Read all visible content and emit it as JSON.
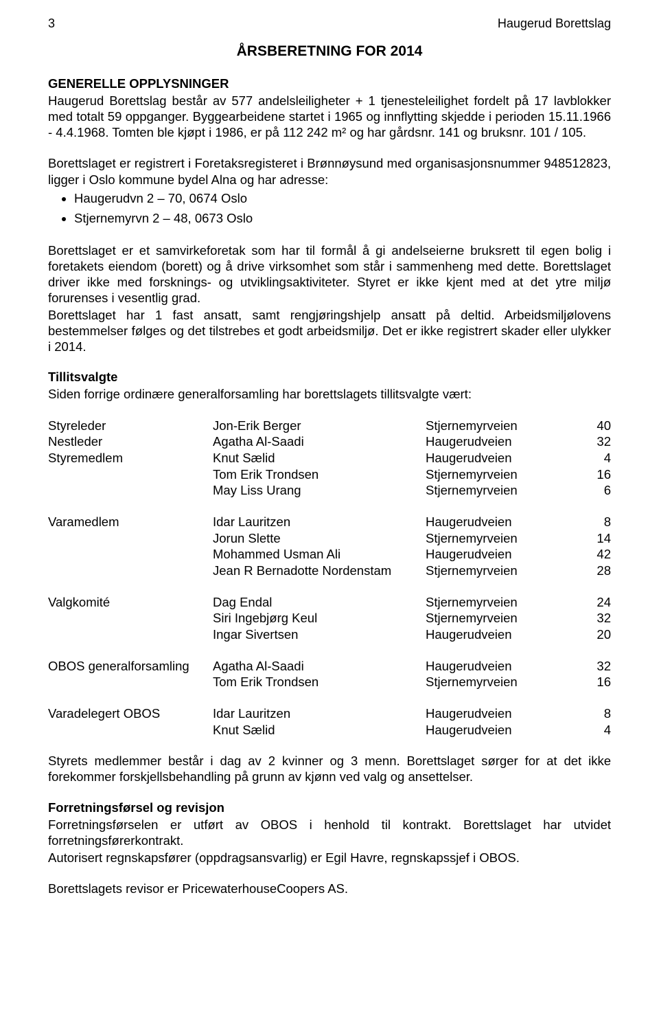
{
  "header": {
    "page_number": "3",
    "organization": "Haugerud Borettslag"
  },
  "title": "ÅRSBERETNING FOR 2014",
  "general_info": {
    "heading": "GENERELLE OPPLYSNINGER",
    "para1": "Haugerud Borettslag består av 577 andelsleiligheter + 1 tjenesteleilighet fordelt på 17 lavblokker med totalt 59 oppganger. Byggearbeidene startet i 1965 og innflytting skjedde i perioden 15.11.1966 - 4.4.1968. Tomten ble kjøpt i 1986, er på 112 242 m² og har gårdsnr. 141 og bruksnr. 101 / 105.",
    "para2": "Borettslaget er registrert i Foretaksregisteret i Brønnøysund med organisasjonsnummer 948512823, ligger i Oslo kommune bydel Alna og har adresse:",
    "addresses": [
      "Haugerudvn 2 – 70, 0674 Oslo",
      "Stjernemyrvn 2 – 48, 0673 Oslo"
    ],
    "para3": "Borettslaget er et samvirkeforetak som har til formål å gi andelseierne bruksrett til egen bolig i foretakets eiendom (borett) og å drive virksomhet som står i sammenheng med dette. Borettslaget driver ikke med forsknings- og utviklingsaktiviteter. Styret er ikke kjent med at det ytre miljø forurenses i vesentlig grad.",
    "para4": "Borettslaget har 1 fast ansatt, samt rengjøringshjelp ansatt på deltid. Arbeidsmiljølovens bestemmelser følges og det tilstrebes et godt arbeidsmiljø. Det er ikke registrert skader eller ulykker i 2014."
  },
  "tillitsvalgte": {
    "heading": "Tillitsvalgte",
    "intro": "Siden forrige ordinære generalforsamling har borettslagets tillitsvalgte vært:",
    "groups": [
      [
        {
          "role": "Styreleder",
          "name": "Jon-Erik Berger",
          "street": "Stjernemyrveien",
          "num": "40"
        },
        {
          "role": "Nestleder",
          "name": "Agatha Al-Saadi",
          "street": "Haugerudveien",
          "num": "32"
        },
        {
          "role": "Styremedlem",
          "name": "Knut Sælid",
          "street": "Haugerudveien",
          "num": "4"
        },
        {
          "role": "",
          "name": "Tom Erik Trondsen",
          "street": "Stjernemyrveien",
          "num": "16"
        },
        {
          "role": "",
          "name": "May Liss Urang",
          "street": "Stjernemyrveien",
          "num": "6"
        }
      ],
      [
        {
          "role": "Varamedlem",
          "name": "Idar Lauritzen",
          "street": "Haugerudveien",
          "num": "8"
        },
        {
          "role": "",
          "name": "Jorun Slette",
          "street": "Stjernemyrveien",
          "num": "14"
        },
        {
          "role": "",
          "name": "Mohammed Usman Ali",
          "street": "Haugerudveien",
          "num": "42"
        },
        {
          "role": "",
          "name": "Jean R Bernadotte Nordenstam",
          "street": "Stjernemyrveien",
          "num": "28"
        }
      ],
      [
        {
          "role": "Valgkomité",
          "name": "Dag Endal",
          "street": "Stjernemyrveien",
          "num": "24"
        },
        {
          "role": "",
          "name": "Siri Ingebjørg Keul",
          "street": "Stjernemyrveien",
          "num": "32"
        },
        {
          "role": "",
          "name": "Ingar Sivertsen",
          "street": "Haugerudveien",
          "num": "20"
        }
      ],
      [
        {
          "role": "OBOS generalforsamling",
          "name": "Agatha Al-Saadi",
          "street": "Haugerudveien",
          "num": "32"
        },
        {
          "role": "",
          "name": "Tom Erik Trondsen",
          "street": "Stjernemyrveien",
          "num": "16"
        }
      ],
      [
        {
          "role": "Varadelegert OBOS",
          "name": "Idar Lauritzen",
          "street": "Haugerudveien",
          "num": "8"
        },
        {
          "role": "",
          "name": "Knut Sælid",
          "street": "Haugerudveien",
          "num": "4"
        }
      ]
    ]
  },
  "board_note": "Styrets medlemmer består i dag av 2 kvinner og 3 menn. Borettslaget sørger for at det ikke forekommer forskjellsbehandling på grunn av kjønn ved valg og ansettelser.",
  "revision": {
    "heading": "Forretningsførsel og revisjon",
    "para1": "Forretningsførselen er utført av OBOS i henhold til kontrakt. Borettslaget har utvidet forretningsførerkontrakt.",
    "para2": "Autorisert regnskapsfører (oppdragsansvarlig) er Egil Havre, regnskapssjef i OBOS.",
    "para3": "Borettslagets revisor er PricewaterhouseCoopers AS."
  }
}
